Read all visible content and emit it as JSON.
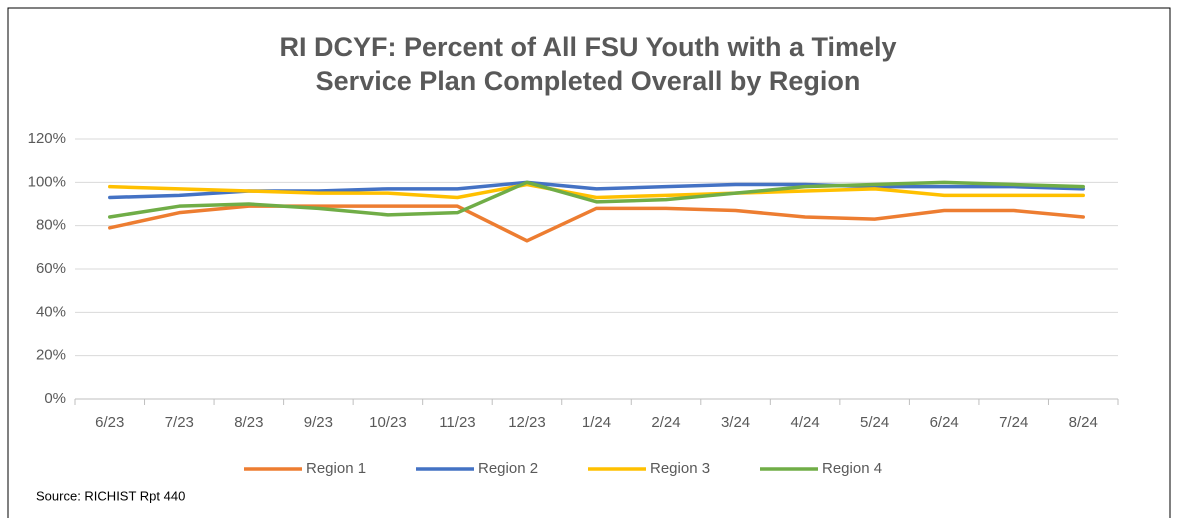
{
  "chart_data": {
    "type": "line",
    "title": "RI DCYF: Percent of All FSU Youth with a Timely Service Plan Completed Overall by Region",
    "source": "Source: RICHIST Rpt 440",
    "categories": [
      "6/23",
      "7/23",
      "8/23",
      "9/23",
      "10/23",
      "11/23",
      "12/23",
      "1/24",
      "2/24",
      "3/24",
      "4/24",
      "5/24",
      "6/24",
      "7/24",
      "8/24"
    ],
    "series": [
      {
        "name": "Region 1",
        "color": "#ed7d31",
        "values": [
          79,
          86,
          89,
          89,
          89,
          89,
          73,
          88,
          88,
          87,
          84,
          83,
          87,
          87,
          84
        ]
      },
      {
        "name": "Region 2",
        "color": "#4472c4",
        "values": [
          93,
          94,
          96,
          96,
          97,
          97,
          100,
          97,
          98,
          99,
          99,
          98,
          98,
          98,
          97
        ]
      },
      {
        "name": "Region 3",
        "color": "#ffc000",
        "values": [
          98,
          97,
          96,
          95,
          95,
          93,
          99,
          93,
          94,
          95,
          96,
          97,
          94,
          94,
          94
        ]
      },
      {
        "name": "Region 4",
        "color": "#70ad47",
        "values": [
          84,
          89,
          90,
          88,
          85,
          86,
          100,
          91,
          92,
          95,
          98,
          99,
          100,
          99,
          98
        ]
      }
    ],
    "ylim": [
      0,
      120
    ],
    "yticks": [
      {
        "value": 0,
        "label": "0%"
      },
      {
        "value": 20,
        "label": "20%"
      },
      {
        "value": 40,
        "label": "40%"
      },
      {
        "value": 60,
        "label": "60%"
      },
      {
        "value": 80,
        "label": "80%"
      },
      {
        "value": 100,
        "label": "100%"
      },
      {
        "value": 120,
        "label": "120%"
      }
    ],
    "grid": true,
    "legend": "bottom"
  }
}
